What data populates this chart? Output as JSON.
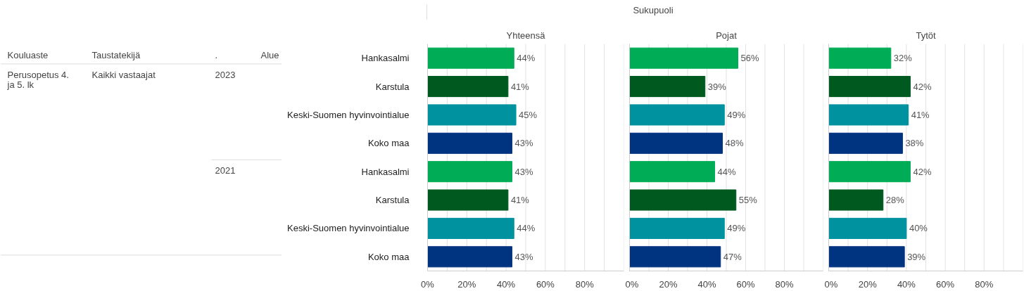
{
  "chart_data": [
    {
      "type": "other",
      "annotations": [
        "Sukupuoli",
        "Kouluaste",
        "Taustatekijä",
        ".",
        "Alue",
        "Perusopetus 4. ja 5. lk",
        "Kaikki vastaajat",
        "2023",
        "2021"
      ]
    },
    {
      "type": "bar",
      "orientation": "horizontal",
      "title": "Yhteensä",
      "categories": [
        "Hankasalmi",
        "Karstula",
        "Keski-Suomen hyvinvointialue",
        "Koko maa",
        "Hankasalmi",
        "Karstula",
        "Keski-Suomen hyvinvointialue",
        "Koko maa"
      ],
      "values": [
        44,
        41,
        45,
        43,
        43,
        41,
        44,
        43
      ],
      "value_labels": [
        "44%",
        "41%",
        "45%",
        "43%",
        "43%",
        "41%",
        "44%",
        "43%"
      ],
      "colors": [
        "#00ac55",
        "#005a20",
        "#00929f",
        "#003380",
        "#00ac55",
        "#005a20",
        "#00929f",
        "#003380"
      ],
      "xlim": [
        0,
        100
      ],
      "xticks": [
        {
          "value": 0,
          "label": "0%"
        },
        {
          "value": 10,
          "label": null
        },
        {
          "value": 20,
          "label": "20%"
        },
        {
          "value": 30,
          "label": null
        },
        {
          "value": 40,
          "label": "40%"
        },
        {
          "value": 50,
          "label": null
        },
        {
          "value": 60,
          "label": "60%"
        },
        {
          "value": 70,
          "label": null
        },
        {
          "value": 80,
          "label": "80%"
        },
        {
          "value": 90,
          "label": null
        },
        {
          "value": 100,
          "label": null
        }
      ],
      "grid": "x"
    },
    {
      "type": "bar",
      "orientation": "horizontal",
      "title": "Pojat",
      "categories": [
        "Hankasalmi",
        "Karstula",
        "Keski-Suomen hyvinvointialue",
        "Koko maa",
        "Hankasalmi",
        "Karstula",
        "Keski-Suomen hyvinvointialue",
        "Koko maa"
      ],
      "values": [
        56,
        39,
        49,
        48,
        44,
        55,
        49,
        47
      ],
      "value_labels": [
        "56%",
        "39%",
        "49%",
        "48%",
        "44%",
        "55%",
        "49%",
        "47%"
      ],
      "colors": [
        "#00ac55",
        "#005a20",
        "#00929f",
        "#003380",
        "#00ac55",
        "#005a20",
        "#00929f",
        "#003380"
      ],
      "xlim": [
        0,
        100
      ],
      "xticks": [
        {
          "value": 0,
          "label": "0%"
        },
        {
          "value": 10,
          "label": null
        },
        {
          "value": 20,
          "label": "20%"
        },
        {
          "value": 30,
          "label": null
        },
        {
          "value": 40,
          "label": "40%"
        },
        {
          "value": 50,
          "label": null
        },
        {
          "value": 60,
          "label": "60%"
        },
        {
          "value": 70,
          "label": null
        },
        {
          "value": 80,
          "label": "80%"
        },
        {
          "value": 90,
          "label": null
        },
        {
          "value": 100,
          "label": null
        }
      ],
      "grid": "x",
      "tick_labels": "x"
    },
    {
      "type": "bar",
      "orientation": "horizontal",
      "title": "Tytöt",
      "categories": [
        "Hankasalmi",
        "Karstula",
        "Keski-Suomen hyvinvointialue",
        "Koko maa",
        "Hankasalmi",
        "Karstula",
        "Keski-Suomen hyvinvointialue",
        "Koko maa"
      ],
      "values": [
        32,
        42,
        41,
        38,
        42,
        28,
        40,
        39
      ],
      "value_labels": [
        "32%",
        "42%",
        "41%",
        "38%",
        "42%",
        "28%",
        "40%",
        "39%"
      ],
      "colors": [
        "#00ac55",
        "#005a20",
        "#00929f",
        "#003380",
        "#00ac55",
        "#005a20",
        "#00929f",
        "#003380"
      ],
      "xlim": [
        0,
        100
      ],
      "xticks": [
        {
          "value": 0,
          "label": "0%"
        },
        {
          "value": 10,
          "label": null
        },
        {
          "value": 20,
          "label": "20%"
        },
        {
          "value": 30,
          "label": null
        },
        {
          "value": 40,
          "label": "40%"
        },
        {
          "value": 50,
          "label": null
        },
        {
          "value": 60,
          "label": "60%"
        },
        {
          "value": 70,
          "label": null
        },
        {
          "value": 80,
          "label": "80%"
        },
        {
          "value": 90,
          "label": null
        },
        {
          "value": 100,
          "label": null
        }
      ],
      "grid": "x",
      "tick_labels": "x"
    }
  ]
}
